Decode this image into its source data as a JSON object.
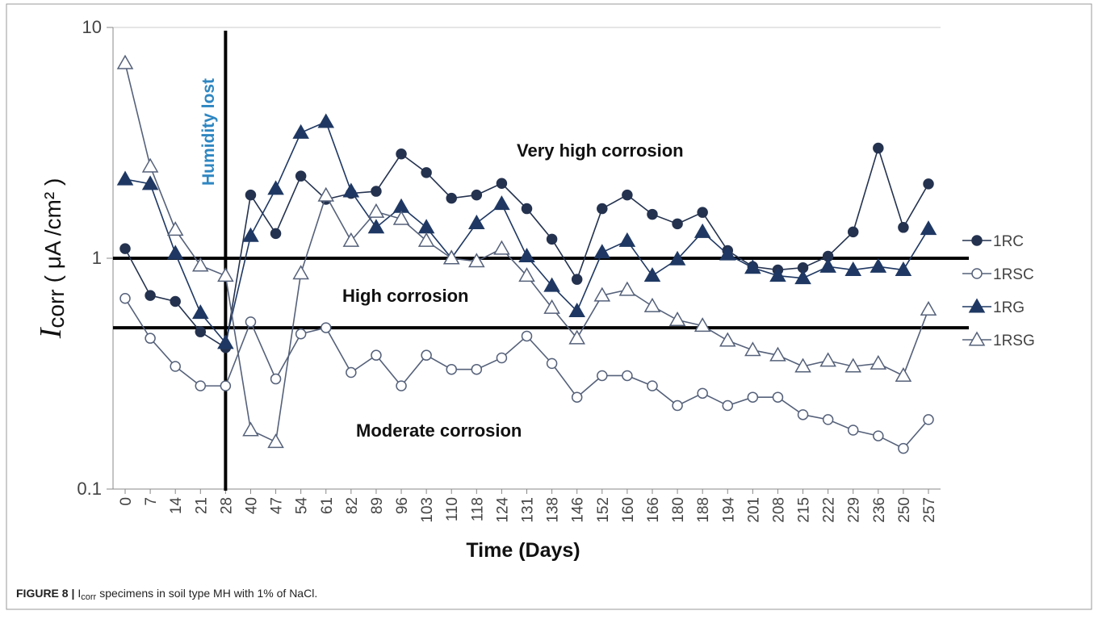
{
  "chart_data": {
    "type": "line",
    "log_scale_y": true,
    "ylim": [
      0.1,
      10
    ],
    "yticks": [
      0.1,
      1,
      10
    ],
    "ylabel_symbol": "I",
    "ylabel_sub": "corr",
    "ylabel_unit": "( μA /cm² )",
    "xlabel": "Time (Days)",
    "categories": [
      "0",
      "7",
      "14",
      "21",
      "28",
      "40",
      "47",
      "54",
      "61",
      "82",
      "89",
      "96",
      "103",
      "110",
      "118",
      "124",
      "131",
      "138",
      "146",
      "152",
      "160",
      "166",
      "180",
      "188",
      "194",
      "201",
      "208",
      "215",
      "222",
      "229",
      "236",
      "250",
      "257"
    ],
    "hlines": [
      1,
      0.5
    ],
    "vline": "28",
    "annotations": {
      "very_high": "Very high corrosion",
      "high": "High corrosion",
      "moderate": "Moderate corrosion",
      "humidity": "Humidity lost"
    },
    "legend": "right",
    "series": [
      {
        "name": "1RC",
        "color": "#24324f",
        "marker": "circle",
        "filled": true,
        "values": [
          1.1,
          0.69,
          0.65,
          0.48,
          0.41,
          1.88,
          1.28,
          2.27,
          1.8,
          1.91,
          1.95,
          2.83,
          2.35,
          1.82,
          1.88,
          2.11,
          1.64,
          1.21,
          0.81,
          1.64,
          1.88,
          1.55,
          1.41,
          1.58,
          1.08,
          0.92,
          0.89,
          0.91,
          1.02,
          1.3,
          3.0,
          1.36,
          2.1
        ]
      },
      {
        "name": "1RSC",
        "color": "#55617a",
        "marker": "circle",
        "filled": false,
        "values": [
          0.67,
          0.45,
          0.34,
          0.28,
          0.28,
          0.53,
          0.3,
          0.47,
          0.5,
          0.32,
          0.38,
          0.28,
          0.38,
          0.33,
          0.33,
          0.37,
          0.46,
          0.35,
          0.25,
          0.31,
          0.31,
          0.28,
          0.23,
          0.26,
          0.23,
          0.25,
          0.25,
          0.21,
          0.2,
          0.18,
          0.17,
          0.15,
          0.2
        ]
      },
      {
        "name": "1RG",
        "color": "#1f3863",
        "marker": "triangle",
        "filled": true,
        "values": [
          2.2,
          2.1,
          1.05,
          0.58,
          0.43,
          1.25,
          2.0,
          3.5,
          3.9,
          1.95,
          1.36,
          1.67,
          1.36,
          1.0,
          1.42,
          1.72,
          1.02,
          0.76,
          0.59,
          1.06,
          1.19,
          0.84,
          0.99,
          1.3,
          1.04,
          0.91,
          0.84,
          0.82,
          0.92,
          0.89,
          0.92,
          0.89,
          1.34
        ]
      },
      {
        "name": "1RSG",
        "color": "#55617a",
        "marker": "triangle",
        "filled": false,
        "values": [
          7.0,
          2.5,
          1.33,
          0.93,
          0.84,
          0.18,
          0.16,
          0.86,
          1.87,
          1.19,
          1.59,
          1.48,
          1.19,
          1.0,
          0.97,
          1.1,
          0.84,
          0.61,
          0.45,
          0.69,
          0.73,
          0.62,
          0.54,
          0.51,
          0.44,
          0.4,
          0.38,
          0.34,
          0.36,
          0.34,
          0.35,
          0.31,
          0.6
        ]
      }
    ]
  },
  "caption": {
    "label": "FIGURE 8 |",
    "symbol": "I",
    "sub": "corr",
    "text": "specimens in soil type MH with 1% of NaCl."
  }
}
